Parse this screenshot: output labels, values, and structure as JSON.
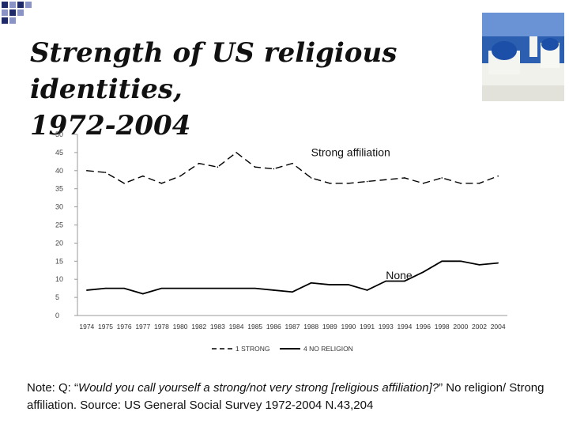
{
  "slide": {
    "title_line1": "Strength of US religious identities,",
    "title_line2": "1972-2004",
    "note_prefix": "Note: Q: “",
    "note_question": "Would you call yourself a strong/not very strong  [religious affiliation]?",
    "note_suffix": "” No religion/ Strong affiliation. Source: US General Social Survey 1972-2004 N.43,204",
    "decor_image": "santorini-church-photo"
  },
  "colors": {
    "accent_dark": "#1f2a6b",
    "accent_light": "#8a93c6",
    "line": "#000000",
    "axis": "#9a9a9a"
  },
  "chart_data": {
    "type": "line",
    "categories": [
      "1974",
      "1975",
      "1976",
      "1977",
      "1978",
      "1980",
      "1982",
      "1983",
      "1984",
      "1985",
      "1986",
      "1987",
      "1988",
      "1989",
      "1990",
      "1991",
      "1993",
      "1994",
      "1996",
      "1998",
      "2000",
      "2002",
      "2004"
    ],
    "ylim": [
      0,
      50
    ],
    "yticks": [
      0,
      5,
      10,
      15,
      20,
      25,
      30,
      35,
      40,
      45,
      50
    ],
    "series": [
      {
        "name": "1  STRONG",
        "style": "dashed",
        "values": [
          40,
          39.5,
          36.5,
          38.5,
          36.5,
          38.5,
          42,
          41,
          45,
          41,
          40.5,
          42,
          38,
          36.5,
          36.5,
          37,
          37.5,
          38,
          36.5,
          38,
          36.5,
          36.5,
          38.5
        ]
      },
      {
        "name": "4  NO RELIGION",
        "style": "solid",
        "values": [
          7,
          7.5,
          7.5,
          6,
          7.5,
          7.5,
          7.5,
          7.5,
          7.5,
          7.5,
          7,
          6.5,
          9,
          8.5,
          8.5,
          7,
          9.5,
          9.5,
          12,
          15,
          15,
          14,
          14.5
        ]
      }
    ],
    "annotations": [
      {
        "text": "Strong affiliation",
        "x": "1988",
        "y": 44
      },
      {
        "text": "None",
        "x": "1993",
        "y": 10
      }
    ],
    "legend_position": "bottom",
    "grid": false
  }
}
